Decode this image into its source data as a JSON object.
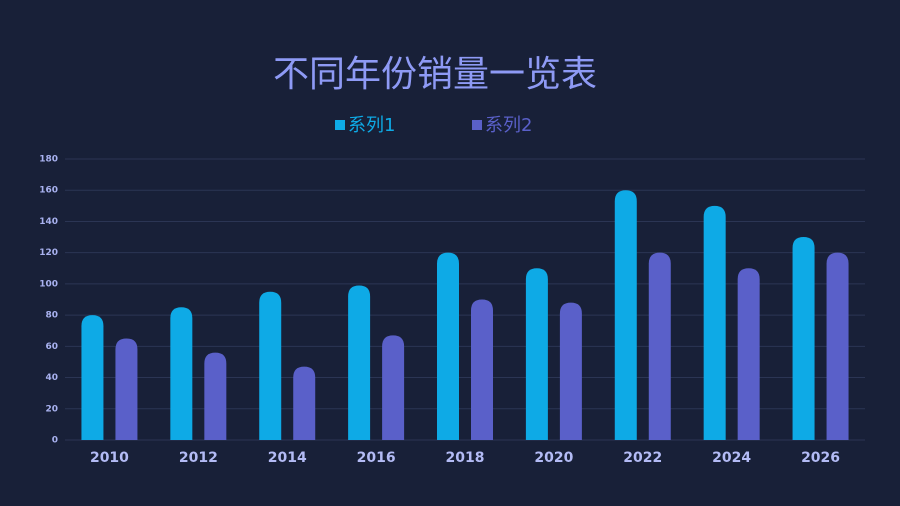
{
  "chart_data": {
    "type": "bar",
    "title": "不同年份销量一览表",
    "categories": [
      "2010",
      "2012",
      "2014",
      "2016",
      "2018",
      "2020",
      "2022",
      "2024",
      "2026"
    ],
    "series": [
      {
        "name": "系列1",
        "color": "#0eaae6",
        "values": [
          80,
          85,
          95,
          99,
          120,
          110,
          160,
          150,
          130
        ]
      },
      {
        "name": "系列2",
        "color": "#5a60c9",
        "values": [
          65,
          56,
          47,
          67,
          90,
          88,
          120,
          110,
          120
        ]
      }
    ],
    "ylim": [
      0,
      180
    ],
    "yticks": [
      0,
      20,
      40,
      60,
      80,
      100,
      120,
      140,
      160,
      180
    ],
    "grid": true
  }
}
